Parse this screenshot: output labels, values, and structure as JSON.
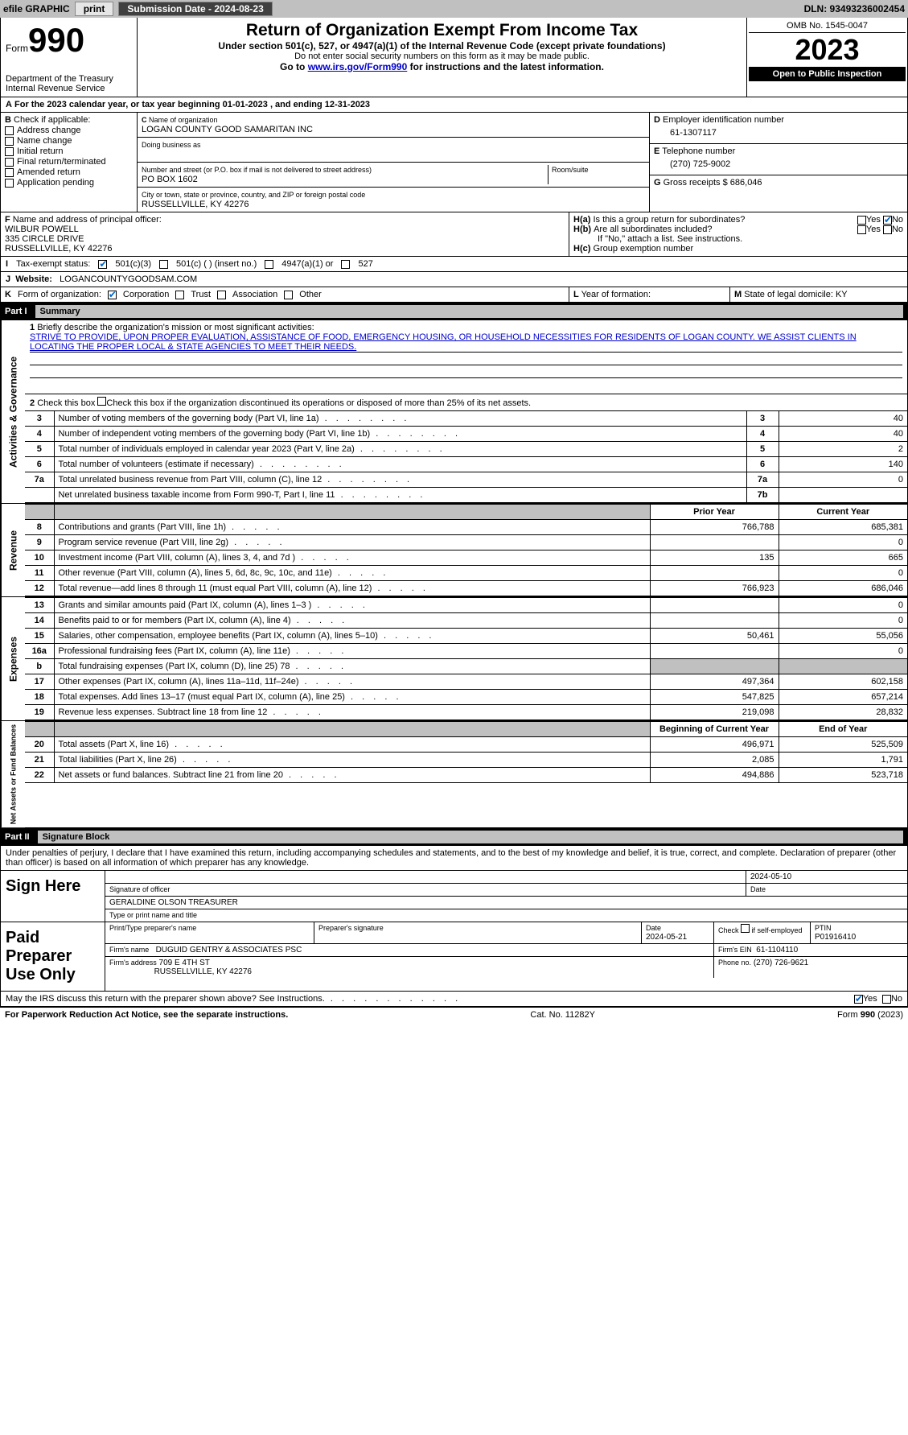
{
  "topbar": {
    "efile": "efile GRAPHIC",
    "print": "print",
    "submission_label": "Submission Date - 2024-08-23",
    "dln_label": "DLN: 93493236002454"
  },
  "header": {
    "form_word": "Form",
    "form_number": "990",
    "dept": "Department of the Treasury",
    "irs": "Internal Revenue Service",
    "title": "Return of Organization Exempt From Income Tax",
    "subtitle": "Under section 501(c), 527, or 4947(a)(1) of the Internal Revenue Code (except private foundations)",
    "ssn_warning": "Do not enter social security numbers on this form as it may be made public.",
    "goto": "Go to",
    "goto_link": "www.irs.gov/Form990",
    "goto_rest": " for instructions and the latest information.",
    "omb": "OMB No. 1545-0047",
    "year": "2023",
    "inspection": "Open to Public Inspection"
  },
  "period": {
    "line": "For the 2023 calendar year, or tax year beginning 01-01-2023   , and ending 12-31-2023"
  },
  "boxB": {
    "label": "Check if applicable:",
    "items": [
      "Address change",
      "Name change",
      "Initial return",
      "Final return/terminated",
      "Amended return",
      "Application pending"
    ]
  },
  "boxC": {
    "name_label": "Name of organization",
    "name": "LOGAN COUNTY GOOD SAMARITAN INC",
    "dba_label": "Doing business as",
    "street_label": "Number and street (or P.O. box if mail is not delivered to street address)",
    "room_label": "Room/suite",
    "street": "PO BOX 1602",
    "city_label": "City or town, state or province, country, and ZIP or foreign postal code",
    "city": "RUSSELLVILLE, KY  42276"
  },
  "boxD": {
    "label": "Employer identification number",
    "ein": "61-1307117"
  },
  "boxE": {
    "label": "Telephone number",
    "phone": "(270) 725-9002"
  },
  "boxG": {
    "label": "Gross receipts $",
    "amount": "686,046"
  },
  "boxF": {
    "label": "Name and address of principal officer:",
    "name": "WILBUR POWELL",
    "addr1": "335 CIRCLE DRIVE",
    "addr2": "RUSSELLVILLE, KY  42276"
  },
  "boxH": {
    "ha": "Is this a group return for subordinates?",
    "hb": "Are all subordinates included?",
    "hb_note": "If \"No,\" attach a list. See instructions.",
    "hc": "Group exemption number"
  },
  "boxI": {
    "label": "Tax-exempt status:",
    "opt1": "501(c)(3)",
    "opt2": "501(c) (  ) (insert no.)",
    "opt3": "4947(a)(1) or",
    "opt4": "527"
  },
  "boxJ": {
    "label": "Website:",
    "value": "LOGANCOUNTYGOODSAM.COM"
  },
  "boxK": {
    "label": "Form of organization:",
    "opts": [
      "Corporation",
      "Trust",
      "Association",
      "Other"
    ]
  },
  "boxL": {
    "label": "Year of formation:"
  },
  "boxM": {
    "label": "State of legal domicile: KY"
  },
  "part1": {
    "header_num": "Part I",
    "header_title": "Summary",
    "line1_label": "Briefly describe the organization's mission or most significant activities:",
    "mission": "STRIVE TO PROVIDE, UPON PROPER EVALUATION, ASSISTANCE OF FOOD, EMERGENCY HOUSING, OR HOUSEHOLD NECESSITIES FOR RESIDENTS OF LOGAN COUNTY. WE ASSIST CLIENTS IN LOCATING THE PROPER LOCAL & STATE AGENCIES TO MEET THEIR NEEDS.",
    "line2": "Check this box        if the organization discontinued its operations or disposed of more than 25% of its net assets.",
    "governance_lines": [
      {
        "num": "3",
        "text": "Number of voting members of the governing body (Part VI, line 1a)",
        "box": "3",
        "val": "40"
      },
      {
        "num": "4",
        "text": "Number of independent voting members of the governing body (Part VI, line 1b)",
        "box": "4",
        "val": "40"
      },
      {
        "num": "5",
        "text": "Total number of individuals employed in calendar year 2023 (Part V, line 2a)",
        "box": "5",
        "val": "2"
      },
      {
        "num": "6",
        "text": "Total number of volunteers (estimate if necessary)",
        "box": "6",
        "val": "140"
      },
      {
        "num": "7a",
        "text": "Total unrelated business revenue from Part VIII, column (C), line 12",
        "box": "7a",
        "val": "0"
      },
      {
        "num": "",
        "text": "Net unrelated business taxable income from Form 990-T, Part I, line 11",
        "box": "7b",
        "val": ""
      }
    ],
    "prior_year_label": "Prior Year",
    "current_year_label": "Current Year",
    "revenue_lines": [
      {
        "num": "8",
        "text": "Contributions and grants (Part VIII, line 1h)",
        "prior": "766,788",
        "curr": "685,381"
      },
      {
        "num": "9",
        "text": "Program service revenue (Part VIII, line 2g)",
        "prior": "",
        "curr": "0"
      },
      {
        "num": "10",
        "text": "Investment income (Part VIII, column (A), lines 3, 4, and 7d )",
        "prior": "135",
        "curr": "665"
      },
      {
        "num": "11",
        "text": "Other revenue (Part VIII, column (A), lines 5, 6d, 8c, 9c, 10c, and 11e)",
        "prior": "",
        "curr": "0"
      },
      {
        "num": "12",
        "text": "Total revenue—add lines 8 through 11 (must equal Part VIII, column (A), line 12)",
        "prior": "766,923",
        "curr": "686,046"
      }
    ],
    "expense_lines": [
      {
        "num": "13",
        "text": "Grants and similar amounts paid (Part IX, column (A), lines 1–3 )",
        "prior": "",
        "curr": "0"
      },
      {
        "num": "14",
        "text": "Benefits paid to or for members (Part IX, column (A), line 4)",
        "prior": "",
        "curr": "0"
      },
      {
        "num": "15",
        "text": "Salaries, other compensation, employee benefits (Part IX, column (A), lines 5–10)",
        "prior": "50,461",
        "curr": "55,056"
      },
      {
        "num": "16a",
        "text": "Professional fundraising fees (Part IX, column (A), line 11e)",
        "prior": "",
        "curr": "0"
      },
      {
        "num": "b",
        "text": "Total fundraising expenses (Part IX, column (D), line 25) 78",
        "prior": "GREY",
        "curr": "GREY"
      },
      {
        "num": "17",
        "text": "Other expenses (Part IX, column (A), lines 11a–11d, 11f–24e)",
        "prior": "497,364",
        "curr": "602,158"
      },
      {
        "num": "18",
        "text": "Total expenses. Add lines 13–17 (must equal Part IX, column (A), line 25)",
        "prior": "547,825",
        "curr": "657,214"
      },
      {
        "num": "19",
        "text": "Revenue less expenses. Subtract line 18 from line 12",
        "prior": "219,098",
        "curr": "28,832"
      }
    ],
    "begin_year_label": "Beginning of Current Year",
    "end_year_label": "End of Year",
    "net_lines": [
      {
        "num": "20",
        "text": "Total assets (Part X, line 16)",
        "prior": "496,971",
        "curr": "525,509"
      },
      {
        "num": "21",
        "text": "Total liabilities (Part X, line 26)",
        "prior": "2,085",
        "curr": "1,791"
      },
      {
        "num": "22",
        "text": "Net assets or fund balances. Subtract line 21 from line 20",
        "prior": "494,886",
        "curr": "523,718"
      }
    ],
    "vert_labels": {
      "governance": "Activities & Governance",
      "revenue": "Revenue",
      "expenses": "Expenses",
      "net": "Net Assets or Fund Balances"
    }
  },
  "part2": {
    "header_num": "Part II",
    "header_title": "Signature Block",
    "perjury": "Under penalties of perjury, I declare that I have examined this return, including accompanying schedules and statements, and to the best of my knowledge and belief, it is true, correct, and complete. Declaration of preparer (other than officer) is based on all information of which preparer has any knowledge.",
    "sign_here": "Sign Here",
    "sig_officer": "Signature of officer",
    "sig_date": "Date",
    "sig_date_val": "2024-05-10",
    "officer_name": "GERALDINE OLSON  TREASURER",
    "type_name": "Type or print name and title",
    "paid_preparer": "Paid Preparer Use Only",
    "print_name_label": "Print/Type preparer's name",
    "prep_sig_label": "Preparer's signature",
    "date_label": "Date",
    "date_val": "2024-05-21",
    "check_self": "Check         if self-employed",
    "ptin_label": "PTIN",
    "ptin": "P01916410",
    "firm_name_label": "Firm's name",
    "firm_name": "DUGUID GENTRY & ASSOCIATES PSC",
    "firm_ein_label": "Firm's EIN",
    "firm_ein": "61-1104110",
    "firm_addr_label": "Firm's address",
    "firm_addr1": "709 E 4TH ST",
    "firm_addr2": "RUSSELLVILLE, KY  42276",
    "phone_label": "Phone no.",
    "phone": "(270) 726-9621",
    "discuss": "May the IRS discuss this return with the preparer shown above? See Instructions."
  },
  "footer": {
    "paperwork": "For Paperwork Reduction Act Notice, see the separate instructions.",
    "cat": "Cat. No. 11282Y",
    "form": "Form 990 (2023)"
  },
  "labels": {
    "yes": "Yes",
    "no": "No",
    "b": "B",
    "c": "C",
    "d": "D",
    "e": "E",
    "f": "F",
    "g": "G",
    "ha": "H(a)",
    "hb": "H(b)",
    "hc": "H(c)",
    "i": "I",
    "j": "J",
    "k": "K",
    "l": "L",
    "m": "M",
    "a": "A"
  }
}
